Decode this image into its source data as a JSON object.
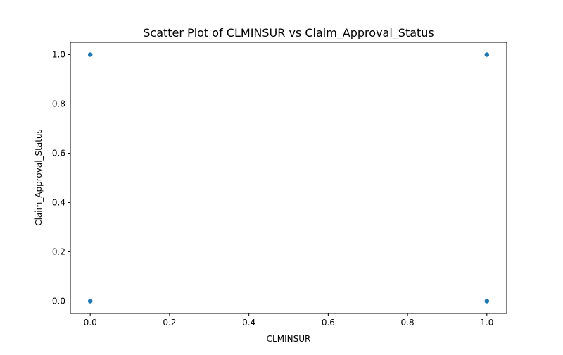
{
  "chart_data": {
    "type": "scatter",
    "title": "Scatter Plot of CLMINSUR vs Claim_Approval_Status",
    "xlabel": "CLMINSUR",
    "ylabel": "Claim_Approval_Status",
    "xlim": [
      -0.05,
      1.05
    ],
    "ylim": [
      -0.05,
      1.05
    ],
    "xticks": [
      0.0,
      0.2,
      0.4,
      0.6,
      0.8,
      1.0
    ],
    "yticks": [
      0.0,
      0.2,
      0.4,
      0.6,
      0.8,
      1.0
    ],
    "xtick_labels": [
      "0.0",
      "0.2",
      "0.4",
      "0.6",
      "0.8",
      "1.0"
    ],
    "ytick_labels": [
      "0.0",
      "0.2",
      "0.4",
      "0.6",
      "0.8",
      "1.0"
    ],
    "grid": false,
    "marker_color": "#1f77b4",
    "points": [
      {
        "x": 0.0,
        "y": 1.0
      },
      {
        "x": 0.0,
        "y": 0.0
      },
      {
        "x": 1.0,
        "y": 1.0
      },
      {
        "x": 1.0,
        "y": 0.0
      }
    ]
  }
}
